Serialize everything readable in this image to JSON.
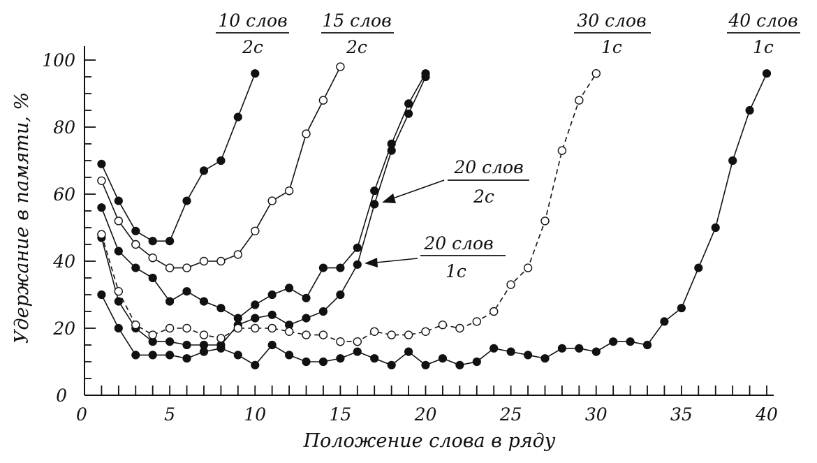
{
  "chart_data": {
    "type": "line",
    "xlabel": "Положение слова в ряду",
    "ylabel": "Удержание в памяти, %",
    "xlim": [
      0,
      40
    ],
    "ylim": [
      0,
      100
    ],
    "x_ticks": [
      "0",
      "5",
      "10",
      "15",
      "20",
      "25",
      "30",
      "35",
      "40"
    ],
    "x_tick_values": [
      0,
      5,
      10,
      15,
      20,
      25,
      30,
      35,
      40
    ],
    "y_ticks": [
      "0",
      "20",
      "40",
      "60",
      "80",
      "100"
    ],
    "y_tick_values": [
      0,
      20,
      40,
      60,
      80,
      100
    ],
    "grid": false,
    "legend": "none",
    "series": [
      {
        "name": "10 слов / 2с",
        "name_top": "10 слов",
        "name_bottom": "2с",
        "marker": "filled",
        "line": "solid",
        "x": [
          1,
          2,
          3,
          4,
          5,
          6,
          7,
          8,
          9,
          10
        ],
        "values": [
          69,
          58,
          49,
          46,
          46,
          58,
          67,
          70,
          83,
          96
        ]
      },
      {
        "name": "15 слов / 2с",
        "name_top": "15 слов",
        "name_bottom": "2с",
        "marker": "open",
        "line": "solid",
        "x": [
          1,
          2,
          3,
          4,
          5,
          6,
          7,
          8,
          9,
          10,
          11,
          12,
          13,
          14,
          15
        ],
        "values": [
          64,
          52,
          45,
          41,
          38,
          38,
          40,
          40,
          42,
          49,
          58,
          61,
          78,
          88,
          98
        ]
      },
      {
        "name": "20 слов / 2с",
        "name_top": "20 слов",
        "name_bottom": "2с",
        "marker": "filled",
        "line": "solid",
        "x": [
          1,
          2,
          3,
          4,
          5,
          6,
          7,
          8,
          9,
          10,
          11,
          12,
          13,
          14,
          15,
          16,
          17,
          18,
          19,
          20
        ],
        "values": [
          56,
          43,
          38,
          35,
          28,
          31,
          28,
          26,
          23,
          27,
          30,
          32,
          29,
          38,
          38,
          44,
          61,
          75,
          87,
          96
        ]
      },
      {
        "name": "20 слов / 1с",
        "name_top": "20 слов",
        "name_bottom": "1с",
        "marker": "filled",
        "line": "solid",
        "x": [
          1,
          2,
          3,
          4,
          5,
          6,
          7,
          8,
          9,
          10,
          11,
          12,
          13,
          14,
          15,
          16,
          17,
          18,
          19,
          20
        ],
        "values": [
          47,
          28,
          20,
          16,
          16,
          15,
          15,
          15,
          21,
          23,
          24,
          21,
          23,
          25,
          30,
          39,
          57,
          73,
          84,
          95
        ]
      },
      {
        "name": "30 слов / 1с",
        "name_top": "30 слов",
        "name_bottom": "1с",
        "marker": "open",
        "line": "dashed",
        "x": [
          1,
          2,
          3,
          4,
          5,
          6,
          7,
          8,
          9,
          10,
          11,
          12,
          13,
          14,
          15,
          16,
          17,
          18,
          19,
          20,
          21,
          22,
          23,
          24,
          25,
          26,
          27,
          28,
          29,
          30
        ],
        "values": [
          48,
          31,
          21,
          18,
          20,
          20,
          18,
          17,
          20,
          20,
          20,
          19,
          18,
          18,
          16,
          16,
          19,
          18,
          18,
          19,
          21,
          20,
          22,
          25,
          33,
          38,
          52,
          73,
          88,
          96
        ]
      },
      {
        "name": "40 слов / 1с",
        "name_top": "40 слов",
        "name_bottom": "1с",
        "marker": "filled",
        "line": "solid",
        "x": [
          1,
          2,
          3,
          4,
          5,
          6,
          7,
          8,
          9,
          10,
          11,
          12,
          13,
          14,
          15,
          16,
          17,
          18,
          19,
          20,
          21,
          22,
          23,
          24,
          25,
          26,
          27,
          28,
          29,
          30,
          31,
          32,
          33,
          34,
          35,
          36,
          37,
          38,
          39,
          40
        ],
        "values": [
          30,
          20,
          12,
          12,
          12,
          11,
          13,
          14,
          12,
          9,
          15,
          12,
          10,
          10,
          11,
          13,
          11,
          9,
          13,
          9,
          11,
          9,
          10,
          14,
          13,
          12,
          11,
          14,
          14,
          13,
          16,
          16,
          15,
          22,
          26,
          38,
          50,
          70,
          85,
          96
        ]
      }
    ]
  }
}
